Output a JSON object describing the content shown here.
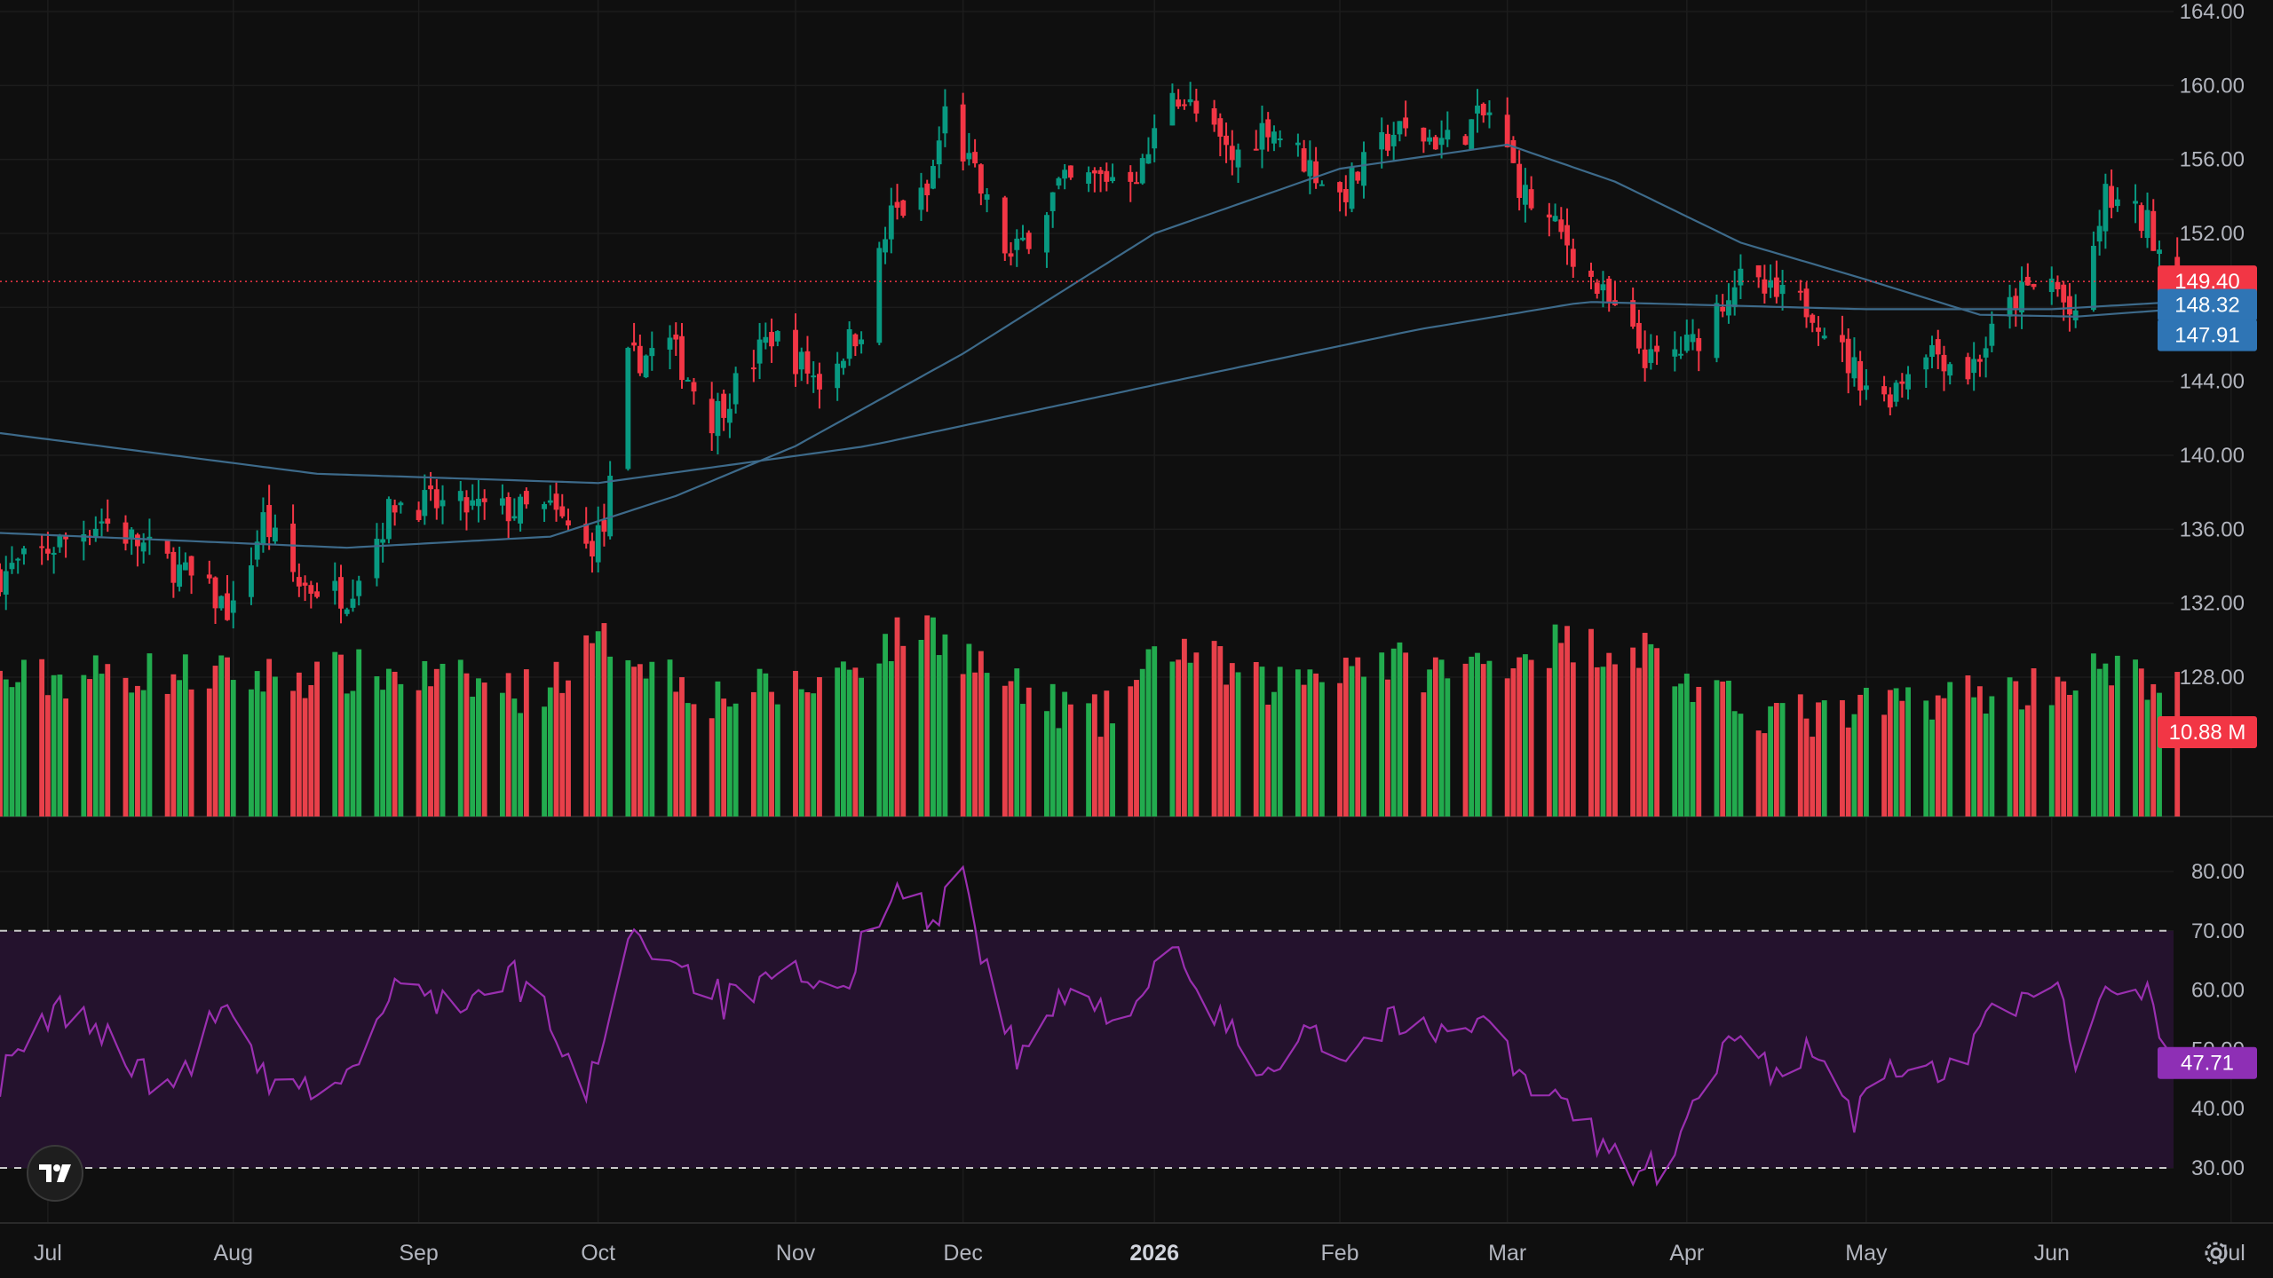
{
  "colors": {
    "background": "#0f0f0f",
    "grid": "#1c1c1c",
    "up": "#089981",
    "down": "#f23645",
    "vol_up": "#22ab4e",
    "vol_down": "#e8404a",
    "ma": "#3d6a8a",
    "rsi_line": "#9a2fb0",
    "rsi_band": "#24122d",
    "last_price_badge": "#f23645",
    "ma_badge": "#2f75b5",
    "volume_badge": "#f23645",
    "rsi_badge": "#8e2fb5"
  },
  "icons": {
    "logo": "tradingview-logo-icon",
    "settings": "gear-icon"
  },
  "chart_data": {
    "type": "candlestick",
    "symbol_interval": "1D",
    "price_axis": {
      "min": 126,
      "max": 164,
      "ticks": [
        "128.00",
        "132.00",
        "136.00",
        "140.00",
        "144.00",
        "148.00",
        "152.00",
        "156.00",
        "160.00",
        "164.00"
      ]
    },
    "rsi_axis": {
      "min": 25,
      "max": 85,
      "ticks": [
        "30.00",
        "40.00",
        "50.00",
        "60.00",
        "70.00",
        "80.00"
      ],
      "overbought": 70,
      "oversold": 30
    },
    "x_axis": {
      "start": "2025-06-23",
      "end": "2026-07-08",
      "ticks": [
        {
          "date": "2025-07-01",
          "label": "Jul"
        },
        {
          "date": "2025-08-01",
          "label": "Aug"
        },
        {
          "date": "2025-09-01",
          "label": "Sep"
        },
        {
          "date": "2025-10-01",
          "label": "Oct"
        },
        {
          "date": "2025-11-03",
          "label": "Nov"
        },
        {
          "date": "2025-12-01",
          "label": "Dec"
        },
        {
          "date": "2026-01-02",
          "label": "2026",
          "bold": true
        },
        {
          "date": "2026-02-02",
          "label": "Feb"
        },
        {
          "date": "2026-03-02",
          "label": "Mar"
        },
        {
          "date": "2026-04-01",
          "label": "Apr"
        },
        {
          "date": "2026-05-01",
          "label": "May"
        },
        {
          "date": "2026-06-01",
          "label": "Jun"
        },
        {
          "date": "2026-07-01",
          "label": "Jul"
        }
      ]
    },
    "close_anchors": [
      [
        "2025-06-23",
        133.5
      ],
      [
        "2025-07-10",
        136.5
      ],
      [
        "2025-07-22",
        134.0
      ],
      [
        "2025-08-01",
        131.5
      ],
      [
        "2025-08-06",
        136.5
      ],
      [
        "2025-08-12",
        133.0
      ],
      [
        "2025-08-20",
        132.5
      ],
      [
        "2025-08-28",
        137.5
      ],
      [
        "2025-09-15",
        137.0
      ],
      [
        "2025-09-23",
        137.0
      ],
      [
        "2025-09-29",
        135.0
      ],
      [
        "2025-10-02",
        136.0
      ],
      [
        "2025-10-06",
        145.0
      ],
      [
        "2025-10-13",
        146.0
      ],
      [
        "2025-10-20",
        142.0
      ],
      [
        "2025-10-30",
        146.5
      ],
      [
        "2025-11-07",
        144.0
      ],
      [
        "2025-11-14",
        147.0
      ],
      [
        "2025-11-19",
        153.0
      ],
      [
        "2025-11-25",
        154.0
      ],
      [
        "2025-11-28",
        158.5
      ],
      [
        "2025-12-03",
        155.0
      ],
      [
        "2025-12-09",
        150.5
      ],
      [
        "2025-12-17",
        154.5
      ],
      [
        "2025-12-31",
        155.5
      ],
      [
        "2026-01-05",
        160.0
      ],
      [
        "2026-01-15",
        156.0
      ],
      [
        "2026-01-21",
        158.0
      ],
      [
        "2026-02-02",
        154.0
      ],
      [
        "2026-02-11",
        157.5
      ],
      [
        "2026-02-20",
        157.0
      ],
      [
        "2026-02-27",
        158.5
      ],
      [
        "2026-03-05",
        154.0
      ],
      [
        "2026-03-12",
        151.5
      ],
      [
        "2026-03-18",
        148.5
      ],
      [
        "2026-03-26",
        145.0
      ],
      [
        "2026-04-02",
        146.0
      ],
      [
        "2026-04-09",
        149.5
      ],
      [
        "2026-04-16",
        148.5
      ],
      [
        "2026-04-22",
        148.0
      ],
      [
        "2026-04-28",
        145.0
      ],
      [
        "2026-05-04",
        143.0
      ],
      [
        "2026-05-11",
        146.0
      ],
      [
        "2026-05-18",
        144.5
      ],
      [
        "2026-05-26",
        148.5
      ],
      [
        "2026-06-01",
        149.5
      ],
      [
        "2026-06-05",
        147.0
      ],
      [
        "2026-06-10",
        154.0
      ],
      [
        "2026-06-17",
        152.5
      ],
      [
        "2026-06-22",
        149.4
      ]
    ],
    "moving_averages": [
      {
        "period": 50,
        "last": "147.91",
        "anchors": [
          [
            "2025-06-23",
            135.8
          ],
          [
            "2025-08-20",
            135.0
          ],
          [
            "2025-09-23",
            135.6
          ],
          [
            "2025-10-14",
            137.8
          ],
          [
            "2025-11-03",
            140.5
          ],
          [
            "2025-12-01",
            145.5
          ],
          [
            "2026-01-02",
            152.0
          ],
          [
            "2026-02-02",
            155.5
          ],
          [
            "2026-03-02",
            156.8
          ],
          [
            "2026-03-20",
            154.8
          ],
          [
            "2026-04-10",
            151.5
          ],
          [
            "2026-05-01",
            149.5
          ],
          [
            "2026-05-20",
            147.6
          ],
          [
            "2026-06-05",
            147.5
          ],
          [
            "2026-06-22",
            147.9
          ]
        ]
      },
      {
        "period": 200,
        "last": "148.32",
        "anchors": [
          [
            "2025-06-23",
            141.2
          ],
          [
            "2025-08-15",
            139.0
          ],
          [
            "2025-10-01",
            138.5
          ],
          [
            "2025-11-15",
            140.5
          ],
          [
            "2026-01-02",
            143.8
          ],
          [
            "2026-02-15",
            146.8
          ],
          [
            "2026-03-15",
            148.3
          ],
          [
            "2026-05-01",
            147.9
          ],
          [
            "2026-06-01",
            147.9
          ],
          [
            "2026-06-22",
            148.3
          ]
        ]
      }
    ],
    "rsi_anchors": [
      [
        "2025-06-23",
        45
      ],
      [
        "2025-07-03",
        57
      ],
      [
        "2025-07-10",
        53
      ],
      [
        "2025-07-21",
        42
      ],
      [
        "2025-07-30",
        57
      ],
      [
        "2025-08-08",
        42
      ],
      [
        "2025-08-20",
        45
      ],
      [
        "2025-08-28",
        60
      ],
      [
        "2025-09-10",
        58
      ],
      [
        "2025-09-17",
        62
      ],
      [
        "2025-09-23",
        55
      ],
      [
        "2025-09-29",
        41
      ],
      [
        "2025-10-06",
        70
      ],
      [
        "2025-10-13",
        66
      ],
      [
        "2025-10-22",
        58
      ],
      [
        "2025-11-03",
        62
      ],
      [
        "2025-11-10",
        58
      ],
      [
        "2025-11-19",
        78
      ],
      [
        "2025-11-26",
        72
      ],
      [
        "2025-12-01",
        80
      ],
      [
        "2025-12-05",
        63
      ],
      [
        "2025-12-10",
        48
      ],
      [
        "2025-12-17",
        58
      ],
      [
        "2025-12-29",
        57
      ],
      [
        "2026-01-05",
        66
      ],
      [
        "2026-01-12",
        56
      ],
      [
        "2026-01-20",
        46
      ],
      [
        "2026-01-28",
        55
      ],
      [
        "2026-02-02",
        48
      ],
      [
        "2026-02-10",
        55
      ],
      [
        "2026-02-18",
        52
      ],
      [
        "2026-02-26",
        57
      ],
      [
        "2026-03-05",
        44
      ],
      [
        "2026-03-12",
        40
      ],
      [
        "2026-03-18",
        34
      ],
      [
        "2026-03-24",
        29
      ],
      [
        "2026-03-30",
        31
      ],
      [
        "2026-04-03",
        42
      ],
      [
        "2026-04-09",
        52
      ],
      [
        "2026-04-15",
        47
      ],
      [
        "2026-04-22",
        50
      ],
      [
        "2026-04-29",
        38
      ],
      [
        "2026-05-06",
        48
      ],
      [
        "2026-05-14",
        44
      ],
      [
        "2026-05-21",
        55
      ],
      [
        "2026-05-28",
        60
      ],
      [
        "2026-06-01",
        62
      ],
      [
        "2026-06-05",
        49
      ],
      [
        "2026-06-09",
        61
      ],
      [
        "2026-06-15",
        63
      ],
      [
        "2026-06-22",
        47.71
      ]
    ],
    "volume_anchors": [
      [
        "2025-06-23",
        28
      ],
      [
        "2025-07-15",
        30
      ],
      [
        "2025-08-06",
        29
      ],
      [
        "2025-08-25",
        30
      ],
      [
        "2025-09-20",
        26
      ],
      [
        "2025-10-03",
        37
      ],
      [
        "2025-10-20",
        25
      ],
      [
        "2025-11-05",
        27
      ],
      [
        "2025-11-25",
        40
      ],
      [
        "2025-12-10",
        26
      ],
      [
        "2025-12-24",
        20
      ],
      [
        "2026-01-05",
        36
      ],
      [
        "2026-01-20",
        27
      ],
      [
        "2026-02-05",
        33
      ],
      [
        "2026-02-20",
        30
      ],
      [
        "2026-03-10",
        36
      ],
      [
        "2026-03-25",
        35
      ],
      [
        "2026-04-05",
        24
      ],
      [
        "2026-04-25",
        20
      ],
      [
        "2026-05-10",
        25
      ],
      [
        "2026-05-25",
        26
      ],
      [
        "2026-06-08",
        30
      ],
      [
        "2026-06-22",
        28
      ]
    ],
    "volume_axis_max": 48,
    "badges": {
      "last_price": "149.40",
      "ma_1": "148.32",
      "ma_2": "147.91",
      "volume": "10.88 M",
      "rsi": "47.71"
    }
  }
}
